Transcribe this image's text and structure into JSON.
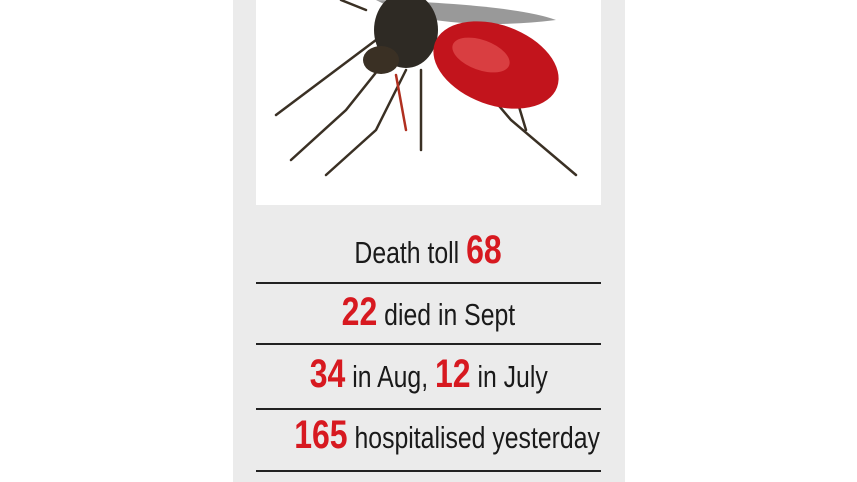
{
  "rows": [
    {
      "text_before": "Death toll ",
      "number": "68",
      "text_after": ""
    },
    {
      "number": "22",
      "text_after": " died in Sept"
    },
    {
      "number": "34",
      "text_mid": " in Aug, ",
      "number2": "12",
      "text_after": " in July"
    },
    {
      "number": "165",
      "text_after": " hospitalised yesterday"
    }
  ],
  "colors": {
    "accent": "#d71920",
    "panel": "#ebebeb"
  },
  "image": "mosquito-photo"
}
